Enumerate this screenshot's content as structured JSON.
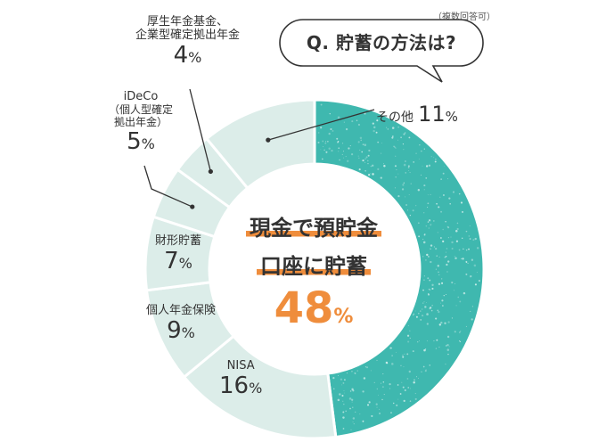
{
  "note": "（複数回答可）",
  "question": "Q. 貯蓄の方法は?",
  "colors": {
    "main_slice": "#3fb8af",
    "other_slices": "#dcede9",
    "slice_border": "#ffffff",
    "accent": "#ef8d3c",
    "text": "#333333"
  },
  "chart_data": {
    "type": "pie",
    "title": "Q. 貯蓄の方法は?",
    "donut": true,
    "unit": "%",
    "categories": [
      "現金で預貯金口座に貯蓄",
      "NISA",
      "個人年金保険",
      "財形貯蓄",
      "iDeCo（個人型確定拠出年金）",
      "厚生年金基金、企業型確定拠出年金",
      "その他"
    ],
    "values": [
      48,
      16,
      9,
      7,
      5,
      4,
      11
    ],
    "labels": [
      {
        "name_lines": [
          "現金で預貯金",
          "口座に貯蓄"
        ],
        "value": "48",
        "unit": "%"
      },
      {
        "name_lines": [
          "NISA"
        ],
        "value": "16",
        "unit": "%"
      },
      {
        "name_lines": [
          "個人年金保険"
        ],
        "value": "9",
        "unit": "%"
      },
      {
        "name_lines": [
          "財形貯蓄"
        ],
        "value": "7",
        "unit": "%"
      },
      {
        "name_lines": [
          "iDeCo",
          "（個人型確定",
          "拠出年金）"
        ],
        "value": "5",
        "unit": "%"
      },
      {
        "name_lines": [
          "厚生年金基金、",
          "企業型確定拠出年金"
        ],
        "value": "4",
        "unit": "%"
      },
      {
        "name_lines": [
          "その他"
        ],
        "value": "11",
        "unit": "%"
      }
    ]
  }
}
